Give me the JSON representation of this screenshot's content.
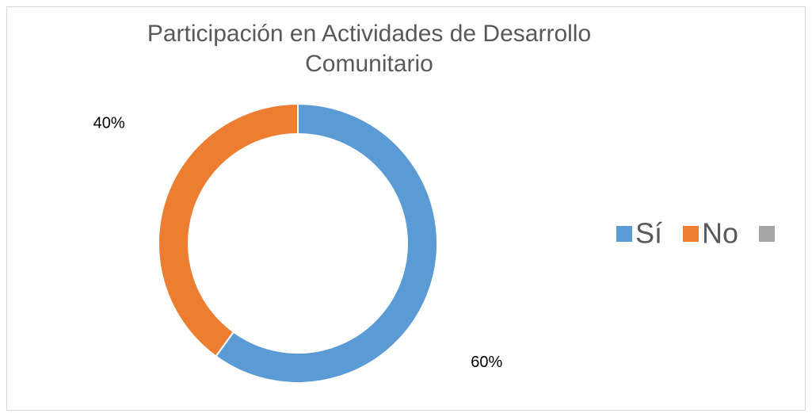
{
  "chart_data": {
    "type": "donut",
    "title": "Participación en Actividades de Desarrollo Comunitario",
    "categories": [
      "Sí",
      "No",
      null
    ],
    "values": [
      60,
      40,
      null
    ],
    "value_labels": [
      "60%",
      "40%",
      null
    ],
    "colors": [
      "#5b9bd5",
      "#ed7d31",
      "#a5a5a5"
    ],
    "legend": "right"
  }
}
